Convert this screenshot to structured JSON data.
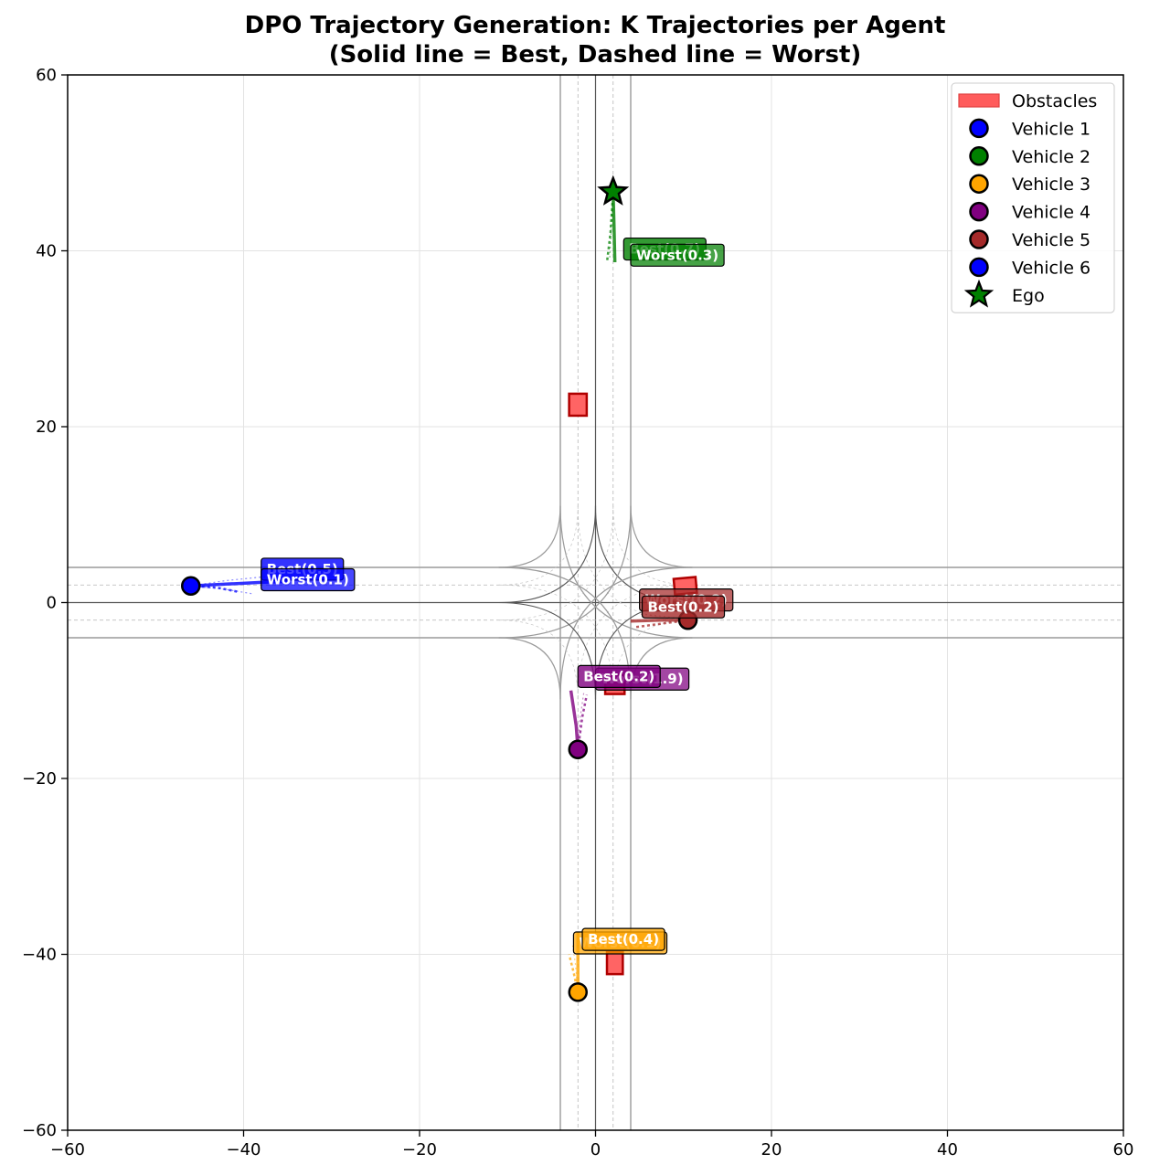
{
  "chart_data": {
    "type": "scatter",
    "title_line1": "DPO Trajectory Generation: K Trajectories per Agent",
    "title_line2": "(Solid line = Best, Dashed line = Worst)",
    "xlabel": "",
    "ylabel": "",
    "xlim": [
      -60,
      60
    ],
    "ylim": [
      -60,
      60
    ],
    "xticks": [
      -60,
      -40,
      -20,
      0,
      20,
      40,
      60
    ],
    "yticks": [
      -60,
      -40,
      -20,
      0,
      20,
      40,
      60
    ],
    "grid": true,
    "legend_position": "top-right",
    "legend": [
      {
        "label": "Obstacles",
        "marker": "rect",
        "color": "#ff5c5c"
      },
      {
        "label": "Vehicle 1",
        "marker": "circle",
        "color": "#0000ff"
      },
      {
        "label": "Vehicle 2",
        "marker": "circle",
        "color": "#008000"
      },
      {
        "label": "Vehicle 3",
        "marker": "circle",
        "color": "#ffa500"
      },
      {
        "label": "Vehicle 4",
        "marker": "circle",
        "color": "#800080"
      },
      {
        "label": "Vehicle 5",
        "marker": "circle",
        "color": "#a52a2a"
      },
      {
        "label": "Vehicle 6",
        "marker": "circle",
        "color": "#0000ff"
      },
      {
        "label": "Ego",
        "marker": "star",
        "color": "#008000"
      }
    ],
    "road": {
      "half_width": 4,
      "lane_offset": 2,
      "extent": 60,
      "junction": 11
    },
    "obstacles": [
      {
        "x": -2,
        "y": 22.5,
        "w": 2,
        "h": 2.5,
        "angle": 0
      },
      {
        "x": 10.2,
        "y": 1.9,
        "w": 2.5,
        "h": 1.8,
        "angle": -5
      },
      {
        "x": 2.2,
        "y": -9.3,
        "w": 2.2,
        "h": 2.2,
        "angle": 0
      },
      {
        "x": 2.2,
        "y": -41,
        "w": 1.8,
        "h": 2.5,
        "angle": 0
      }
    ],
    "agents": [
      {
        "name": "Vehicle 1",
        "color": "#0000ff",
        "position": [
          -46,
          1.9
        ],
        "marker": "circle",
        "best": [
          [
            -46,
            1.9
          ],
          [
            -42,
            2.1
          ],
          [
            -38,
            2.3
          ],
          [
            -35,
            2.4
          ]
        ],
        "worst": [
          [
            -46,
            1.9
          ],
          [
            -43,
            1.7
          ],
          [
            -40.5,
            1.2
          ]
        ],
        "others": [
          [
            [
              -46,
              1.9
            ],
            [
              -42,
              2.5
            ],
            [
              -37,
              3.0
            ]
          ],
          [
            [
              -46,
              1.9
            ],
            [
              -42,
              1.5
            ],
            [
              -39,
              1.0
            ]
          ]
        ],
        "best_label": "Best(0.5)",
        "worst_label": "Worst(0.1)",
        "best_label_pos": [
          -38,
          3.8
        ],
        "worst_label_pos": [
          -38,
          2.6
        ]
      },
      {
        "name": "Ego",
        "color": "#008000",
        "position": [
          2,
          46.7
        ],
        "marker": "star",
        "best": [
          [
            2,
            46.7
          ],
          [
            2.1,
            43
          ],
          [
            2.2,
            38.7
          ]
        ],
        "worst": [
          [
            2,
            46.7
          ],
          [
            1.7,
            42
          ],
          [
            1.3,
            38.7
          ]
        ],
        "others": [
          [
            [
              2,
              46.7
            ],
            [
              1.8,
              42.5
            ],
            [
              1.6,
              39
            ]
          ]
        ],
        "best_label": "Best(0.7)",
        "worst_label": "Worst(0.3)",
        "best_label_pos": [
          3.2,
          40.2
        ],
        "worst_label_pos": [
          4,
          39.5
        ]
      },
      {
        "name": "Vehicle 3",
        "color": "#ffa500",
        "position": [
          -2,
          -44.3
        ],
        "marker": "circle",
        "best": [
          [
            -2,
            -44.3
          ],
          [
            -2,
            -41
          ],
          [
            -2,
            -37.5
          ]
        ],
        "worst": [
          [
            -2,
            -44.3
          ],
          [
            -2.5,
            -42
          ],
          [
            -3,
            -40
          ]
        ],
        "others": [
          [
            [
              -2,
              -44.3
            ],
            [
              -2.3,
              -41
            ],
            [
              -2.6,
              -39
            ]
          ]
        ],
        "best_label": "Best(0.4)",
        "worst_label": "Worst(0.1)",
        "best_label_pos": [
          -1.5,
          -38.3
        ],
        "worst_label_pos": [
          -2.5,
          -38.7
        ]
      },
      {
        "name": "Vehicle 4",
        "color": "#800080",
        "position": [
          -2,
          -16.7
        ],
        "marker": "circle",
        "best": [
          [
            -2,
            -16.7
          ],
          [
            -2.2,
            -14
          ],
          [
            -2.8,
            -10
          ]
        ],
        "worst": [
          [
            -2,
            -16.7
          ],
          [
            -1.5,
            -13
          ],
          [
            -1,
            -10.5
          ]
        ],
        "others": [
          [
            [
              -2,
              -16.7
            ],
            [
              -1.8,
              -13.5
            ],
            [
              -1.3,
              -10
            ]
          ]
        ],
        "best_label": "Best(0.2)",
        "worst_label": "Worst(1.9)",
        "best_label_pos": [
          -2,
          -8.4
        ],
        "worst_label_pos": [
          0,
          -8.7
        ]
      },
      {
        "name": "Vehicle 5",
        "color": "#a52a2a",
        "position": [
          10.5,
          -2
        ],
        "marker": "circle",
        "best": [
          [
            10.5,
            -2
          ],
          [
            7.5,
            -2
          ],
          [
            4,
            -2.1
          ]
        ],
        "worst": [
          [
            10.5,
            -2
          ],
          [
            7.5,
            -2.4
          ],
          [
            4.5,
            -2.8
          ]
        ],
        "others": [
          [
            [
              10.5,
              -2
            ],
            [
              8,
              -1.6
            ],
            [
              5,
              -1.3
            ]
          ]
        ],
        "best_label": "Best(0.2)",
        "worst_label": "Worst(0.2)",
        "best_label_pos": [
          5.3,
          -0.5
        ],
        "worst_label_pos": [
          5,
          0.3
        ]
      }
    ]
  }
}
